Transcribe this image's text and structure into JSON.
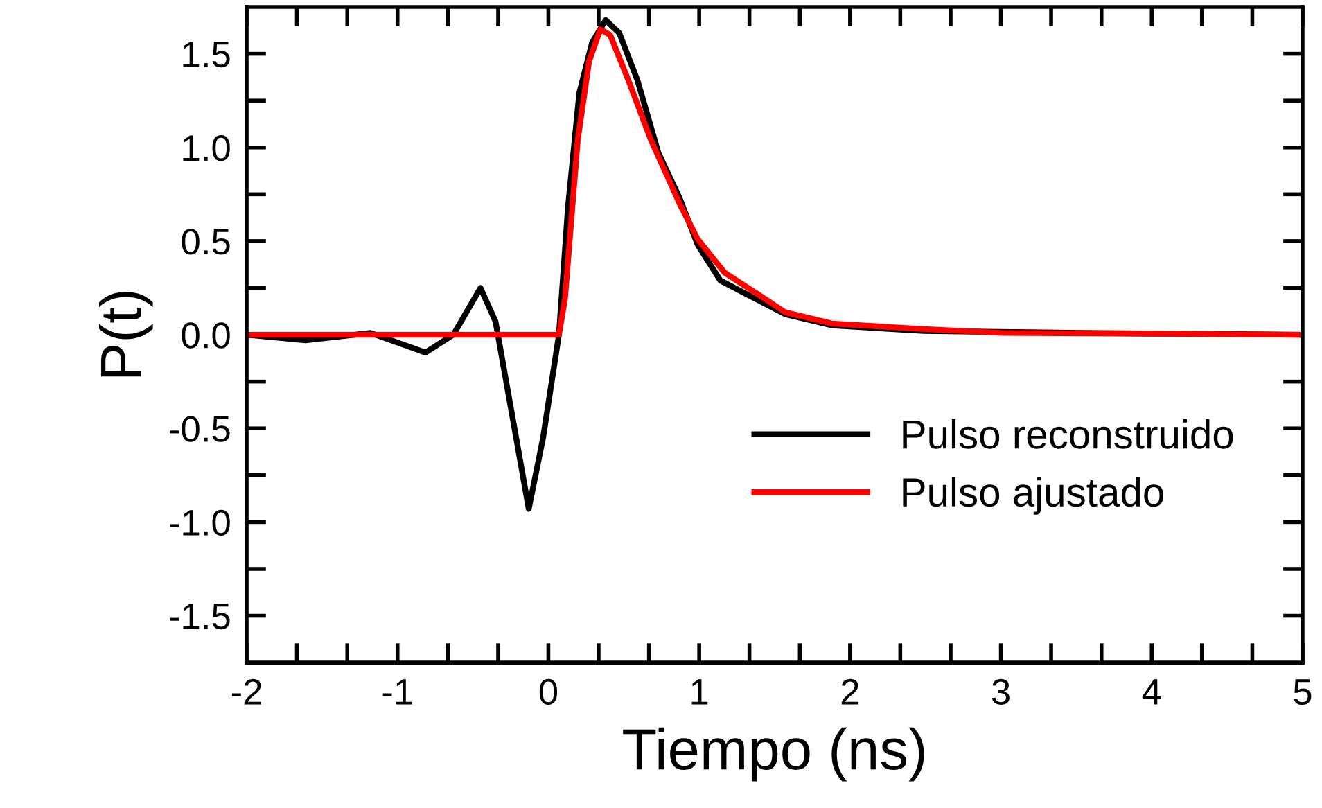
{
  "chart_data": {
    "type": "line",
    "xlabel": "Tiempo (ns)",
    "ylabel": "P(t)",
    "xlim": [
      -2,
      5
    ],
    "ylim": [
      -1.75,
      1.75
    ],
    "xticks": [
      -2,
      {
        "value": -1.667,
        "label": null
      },
      {
        "value": -1.333,
        "label": null
      },
      -1,
      {
        "value": -0.667,
        "label": null
      },
      {
        "value": -0.333,
        "label": null
      },
      0,
      {
        "value": 0.333,
        "label": null
      },
      {
        "value": 0.667,
        "label": null
      },
      1,
      {
        "value": 1.333,
        "label": null
      },
      {
        "value": 1.667,
        "label": null
      },
      2,
      {
        "value": 2.333,
        "label": null
      },
      {
        "value": 2.667,
        "label": null
      },
      3,
      {
        "value": 3.333,
        "label": null
      },
      {
        "value": 3.667,
        "label": null
      },
      4,
      {
        "value": 4.333,
        "label": null
      },
      {
        "value": 4.667,
        "label": null
      },
      5
    ],
    "yticks": [
      {
        "value": -1.5,
        "label": "-1.5"
      },
      {
        "value": -1.25,
        "label": null
      },
      {
        "value": -1.0,
        "label": "-1.0"
      },
      {
        "value": -0.75,
        "label": null
      },
      {
        "value": -0.5,
        "label": "-0.5"
      },
      {
        "value": -0.25,
        "label": null
      },
      {
        "value": 0,
        "label": "0.0"
      },
      {
        "value": 0.25,
        "label": null
      },
      {
        "value": 0.5,
        "label": "0.5"
      },
      {
        "value": 0.75,
        "label": null
      },
      {
        "value": 1.0,
        "label": "1.0"
      },
      {
        "value": 1.25,
        "label": null
      },
      {
        "value": 1.5,
        "label": "1.5"
      }
    ],
    "grid": false,
    "legend": "bottom right",
    "marker": "none",
    "line_style": "solid",
    "series": [
      {
        "name": "Pulso reconstruido",
        "color": "#000000",
        "x": [
          -2,
          -1.61,
          -1.18,
          -0.815,
          -0.63,
          -0.45,
          -0.35,
          -0.24,
          -0.13,
          -0.035,
          0.07,
          0.13,
          0.205,
          0.29,
          0.38,
          0.47,
          0.59,
          0.73,
          0.87,
          0.99,
          1.14,
          1.33,
          1.57,
          1.88,
          2.49,
          3.5,
          5
        ],
        "values": [
          0,
          -0.03,
          0.01,
          -0.095,
          0,
          0.25,
          0.07,
          -0.43,
          -0.93,
          -0.55,
          0,
          0.68,
          1.29,
          1.56,
          1.68,
          1.61,
          1.36,
          0.97,
          0.73,
          0.48,
          0.29,
          0.21,
          0.11,
          0.05,
          0.02,
          0.01,
          0
        ]
      },
      {
        "name": "Pulso ajustado",
        "color": "#ff0000",
        "x": [
          -2,
          0.07,
          0.11,
          0.195,
          0.27,
          0.345,
          0.41,
          0.53,
          0.68,
          0.87,
          0.99,
          1.17,
          1.42,
          1.57,
          1.88,
          2.49,
          3.0,
          5
        ],
        "values": [
          0,
          0,
          0.19,
          1.04,
          1.46,
          1.63,
          1.6,
          1.36,
          1.04,
          0.7,
          0.51,
          0.33,
          0.2,
          0.12,
          0.06,
          0.03,
          0.01,
          0
        ]
      }
    ]
  }
}
